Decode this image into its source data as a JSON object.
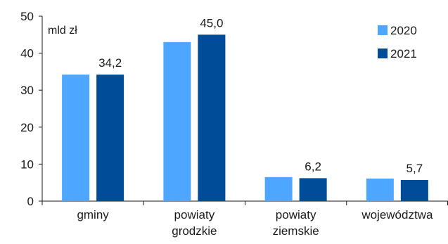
{
  "chart_data": {
    "type": "bar",
    "unit_label": "mld zł",
    "categories": [
      [
        "gminy"
      ],
      [
        "powiaty",
        "grodzkie"
      ],
      [
        "powiaty",
        "ziemskie"
      ],
      [
        "województwa"
      ]
    ],
    "series": [
      {
        "name": "2020",
        "color": "#4da6ff",
        "values": [
          34.2,
          43.0,
          6.5,
          6.1
        ],
        "labels": [
          "",
          "",
          "",
          ""
        ]
      },
      {
        "name": "2021",
        "color": "#004c99",
        "values": [
          34.2,
          45.0,
          6.2,
          5.7
        ],
        "labels": [
          "34,2",
          "45,0",
          "6,2",
          "5,7"
        ]
      }
    ],
    "ylim": [
      0,
      50
    ],
    "yticks": [
      0,
      10,
      20,
      30,
      40,
      50
    ],
    "grid": false,
    "legend_position": "top-right"
  }
}
